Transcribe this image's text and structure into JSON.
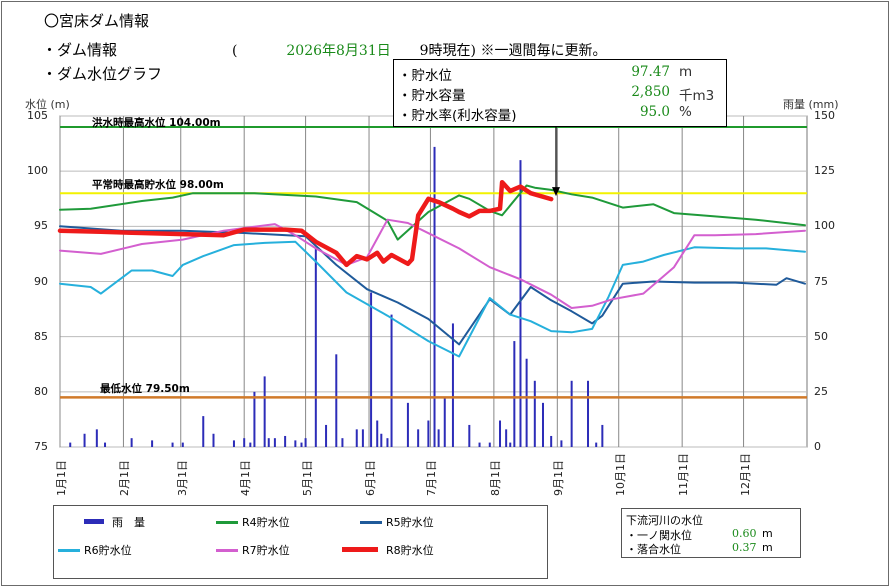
{
  "header": {
    "title": "〇宮床ダム情報",
    "sub1": "・ダム情報",
    "sub2": "・ダム水位グラフ",
    "date_open": "(",
    "date_value": "2026年8月31日",
    "date_time": "9時現在)",
    "date_note": "※一週間毎に更新。"
  },
  "info": {
    "rows": [
      {
        "label": "・貯水位",
        "value": "97.47",
        "unit": "m"
      },
      {
        "label": "・貯水容量",
        "value": "2,850",
        "unit": "千m3"
      },
      {
        "label": "・貯水率(利水容量)",
        "value": "95.0",
        "unit": "%"
      }
    ]
  },
  "axes": {
    "left_title": "水位 (m)",
    "right_title": "雨量 (mm)",
    "left_ticks": [
      "105",
      "100",
      "95",
      "90",
      "85",
      "80",
      "75"
    ],
    "right_ticks": [
      "150",
      "125",
      "100",
      "75",
      "50",
      "25",
      "0"
    ],
    "months": [
      "1月1日",
      "2月1日",
      "3月1日",
      "4月1日",
      "5月1日",
      "6月1日",
      "7月1日",
      "8月1日",
      "9月1日",
      "10月1日",
      "11月1日",
      "12月1日"
    ]
  },
  "reference_lines": {
    "flood": {
      "label": "洪水時最高水位 104.00m",
      "value": 104.0,
      "color": "#1f9a2c"
    },
    "normal": {
      "label": "平常時最高貯水位 98.00m",
      "value": 98.0,
      "color": "#f2f200"
    },
    "minimum": {
      "label": "最低水位 79.50m",
      "value": 79.5,
      "color": "#d07a2a"
    }
  },
  "legend": {
    "rain": "雨　量",
    "r4": "R4貯水位",
    "r5": "R5貯水位",
    "r6": "R6貯水位",
    "r7": "R7貯水位",
    "r8": "R8貯水位"
  },
  "river": {
    "title": "下流河川の水位",
    "rows": [
      {
        "label": "・一ノ関水位",
        "value": "0.60",
        "unit": "m"
      },
      {
        "label": "・落合水位",
        "value": "0.37",
        "unit": "m"
      }
    ]
  },
  "chart_data": {
    "type": "line",
    "xlabel": "",
    "ylabel": "水位 (m)",
    "y2label": "雨量 (mm)",
    "ylim": [
      75,
      105
    ],
    "y2lim": [
      0,
      150
    ],
    "x_unit": "day_of_year",
    "series": [
      {
        "name": "R4貯水位",
        "color": "#1f9a3a",
        "width": 2,
        "x": [
          0,
          15,
          40,
          55,
          65,
          95,
          125,
          145,
          160,
          165,
          180,
          195,
          200,
          210,
          216,
          228,
          232,
          240,
          250,
          260,
          275,
          290,
          300,
          320,
          340,
          364
        ],
        "y": [
          96.5,
          96.6,
          97.3,
          97.6,
          98.0,
          98.0,
          97.7,
          97.2,
          95.5,
          93.8,
          96.3,
          97.8,
          97.5,
          96.4,
          96.0,
          98.7,
          98.5,
          98.3,
          97.9,
          97.6,
          96.7,
          97.0,
          96.2,
          95.9,
          95.6,
          95.1
        ]
      },
      {
        "name": "R5貯水位",
        "color": "#1f5a9a",
        "width": 2,
        "x": [
          0,
          30,
          60,
          90,
          120,
          135,
          150,
          165,
          180,
          195,
          210,
          220,
          230,
          240,
          250,
          260,
          265,
          275,
          290,
          310,
          330,
          350,
          355,
          364
        ],
        "y": [
          95.0,
          94.6,
          94.6,
          94.4,
          94.1,
          91.5,
          89.3,
          88.1,
          86.6,
          84.3,
          88.4,
          87.0,
          89.5,
          88.3,
          87.3,
          86.2,
          86.9,
          89.8,
          90.0,
          89.9,
          89.9,
          89.7,
          90.3,
          89.8
        ]
      },
      {
        "name": "R6貯水位",
        "color": "#26b0dc",
        "width": 2,
        "x": [
          0,
          15,
          20,
          35,
          45,
          55,
          60,
          70,
          85,
          100,
          115,
          125,
          140,
          160,
          180,
          195,
          210,
          220,
          230,
          240,
          250,
          260,
          268,
          275,
          285,
          295,
          310,
          330,
          345,
          364
        ],
        "y": [
          89.8,
          89.5,
          88.9,
          91.0,
          91.0,
          90.5,
          91.5,
          92.3,
          93.3,
          93.5,
          93.6,
          91.8,
          89.0,
          86.9,
          84.6,
          83.2,
          88.5,
          87.0,
          86.4,
          85.5,
          85.4,
          85.7,
          88.6,
          91.5,
          91.8,
          92.4,
          93.1,
          93.0,
          93.0,
          92.7
        ]
      },
      {
        "name": "R7貯水位",
        "color": "#d35fcf",
        "width": 2,
        "x": [
          0,
          20,
          40,
          60,
          80,
          105,
          115,
          125,
          140,
          150,
          160,
          170,
          182,
          195,
          210,
          225,
          240,
          250,
          260,
          270,
          285,
          300,
          310,
          320,
          340,
          364
        ],
        "y": [
          92.8,
          92.5,
          93.4,
          93.8,
          94.6,
          95.2,
          94.2,
          93.0,
          91.5,
          92.2,
          95.6,
          95.3,
          94.2,
          93.0,
          91.3,
          90.2,
          88.8,
          87.6,
          87.8,
          88.4,
          88.9,
          91.3,
          94.2,
          94.2,
          94.3,
          94.6
        ]
      },
      {
        "name": "R8貯水位",
        "color": "#ee1a1a",
        "width": 4.5,
        "x": [
          0,
          20,
          40,
          60,
          80,
          90,
          100,
          110,
          118,
          125,
          135,
          140,
          145,
          150,
          155,
          158,
          162,
          170,
          172,
          175,
          180,
          185,
          192,
          195,
          200,
          205,
          210,
          215,
          216,
          220,
          225,
          230,
          240
        ],
        "y": [
          94.6,
          94.5,
          94.4,
          94.3,
          94.2,
          94.7,
          94.7,
          94.7,
          94.6,
          93.6,
          92.6,
          91.5,
          92.3,
          92.0,
          92.6,
          91.8,
          92.4,
          91.6,
          92.0,
          96.0,
          97.5,
          97.2,
          96.6,
          96.3,
          95.9,
          96.4,
          96.4,
          96.6,
          99.0,
          98.2,
          98.6,
          98.0,
          97.47
        ]
      }
    ],
    "rain": {
      "name": "雨量",
      "color": "#2c2cb8",
      "x": [
        5,
        12,
        18,
        22,
        35,
        45,
        55,
        60,
        70,
        75,
        85,
        90,
        93,
        95,
        100,
        102,
        105,
        110,
        115,
        118,
        120,
        125,
        130,
        135,
        138,
        145,
        148,
        152,
        155,
        157,
        160,
        162,
        170,
        175,
        180,
        183,
        185,
        188,
        192,
        200,
        205,
        210,
        215,
        218,
        220,
        222,
        225,
        228,
        232,
        236,
        240,
        245,
        250,
        258,
        262,
        265
      ],
      "mm": [
        2,
        6,
        8,
        2,
        4,
        3,
        2,
        2,
        14,
        6,
        3,
        4,
        2,
        25,
        32,
        4,
        4,
        5,
        3,
        2,
        4,
        90,
        10,
        42,
        4,
        8,
        8,
        70,
        12,
        6,
        4,
        60,
        20,
        8,
        12,
        136,
        8,
        22,
        56,
        10,
        2,
        2,
        12,
        8,
        2,
        48,
        130,
        40,
        30,
        20,
        5,
        3,
        30,
        30,
        2,
        10
      ]
    }
  }
}
